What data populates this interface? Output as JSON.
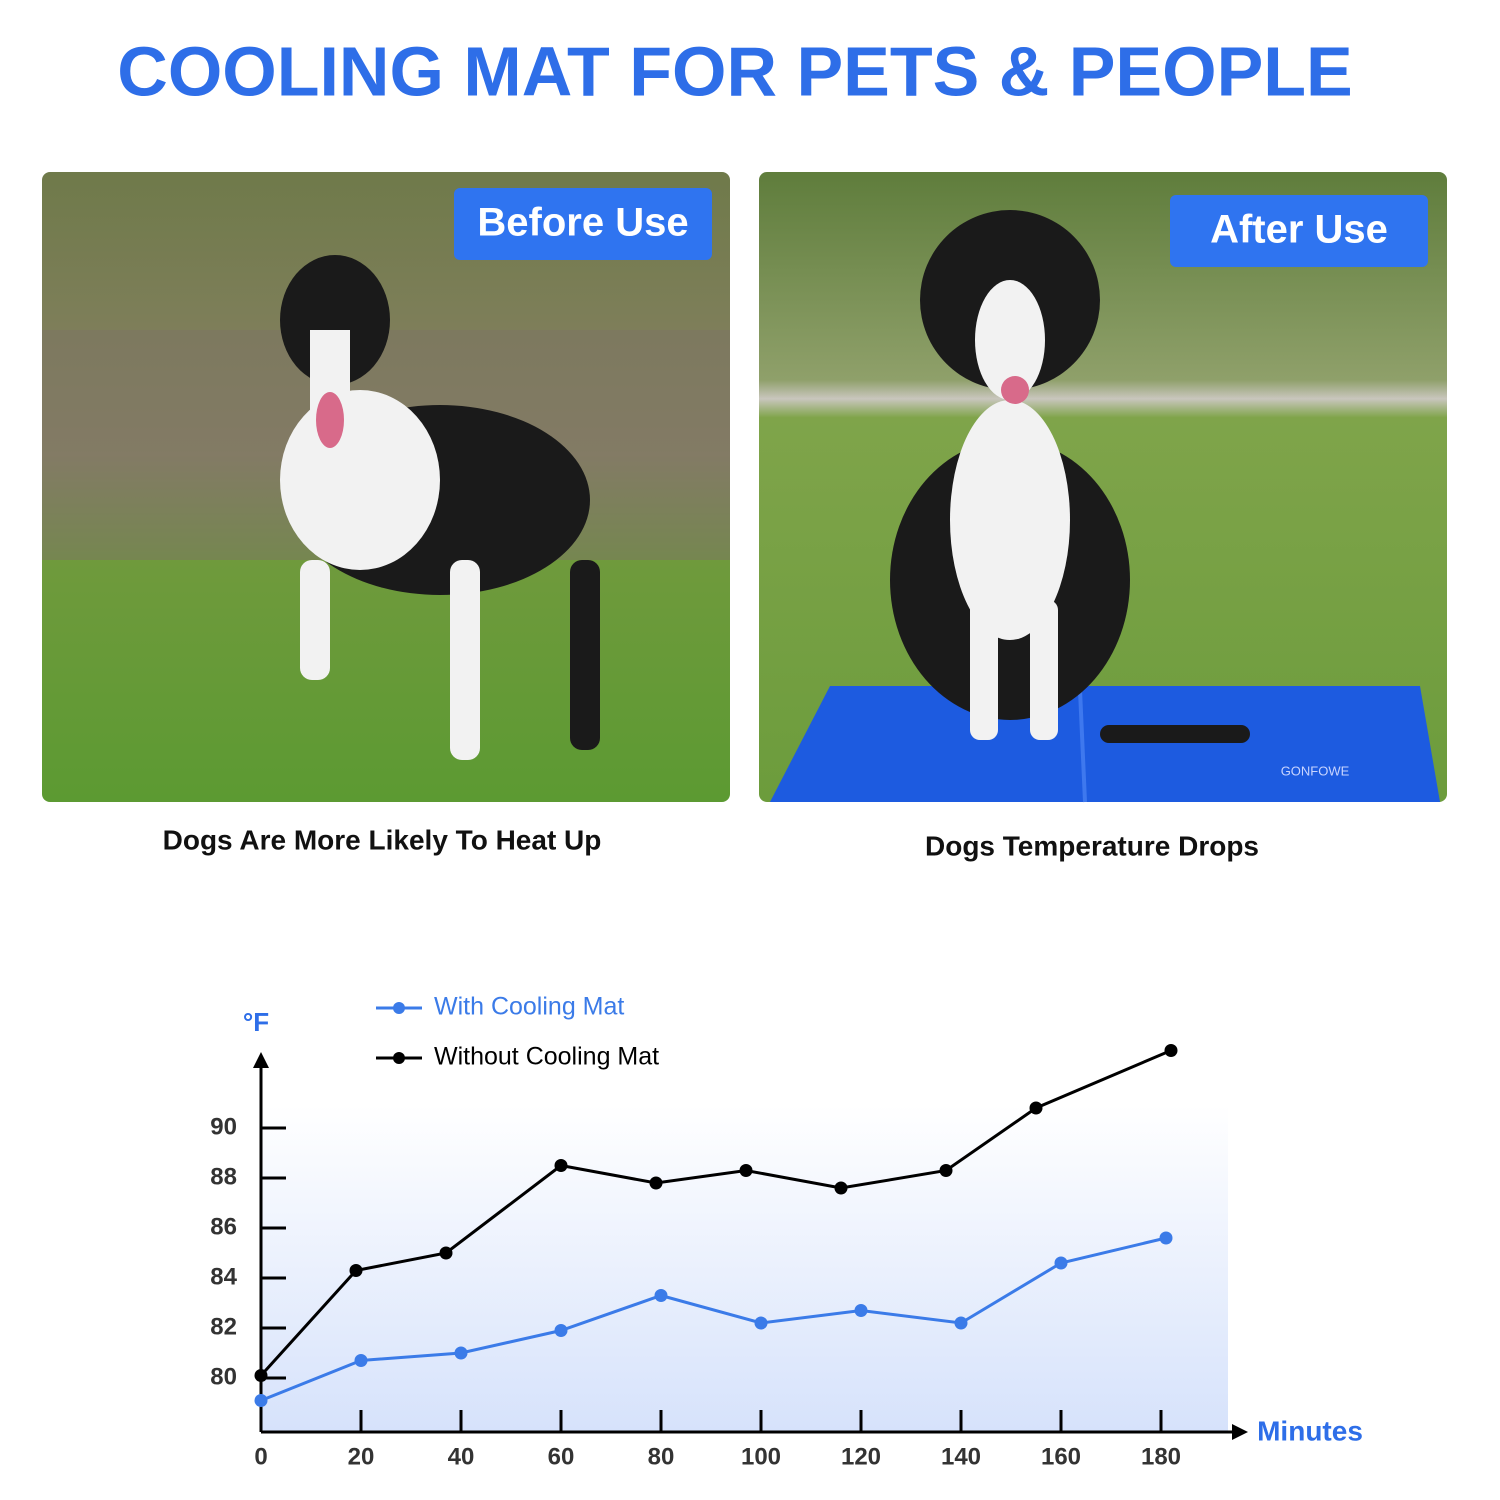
{
  "header": {
    "title": "COOLING MAT FOR PETS & PEOPLE"
  },
  "panels": [
    {
      "badge": "Before Use",
      "caption": "Dogs Are More Likely To Heat Up"
    },
    {
      "badge": "After Use",
      "caption": "Dogs Temperature Drops",
      "mat_brand": "GONFOWE"
    }
  ],
  "chart_data": {
    "type": "line",
    "y_label": "°F",
    "x_label": "Minutes",
    "xlim": [
      0,
      195
    ],
    "ylim": [
      77.84,
      93.52
    ],
    "xticks": [
      0,
      20,
      40,
      60,
      80,
      100,
      120,
      140,
      160,
      180
    ],
    "yticks": [
      80,
      82,
      84,
      86,
      88,
      90
    ],
    "legend_position": "upper left",
    "series": [
      {
        "name": "With Cooling Mat",
        "color": "#3b7be8",
        "x": [
          0,
          20,
          40,
          60,
          80,
          100,
          120,
          140,
          160,
          181
        ],
        "values": [
          79.1,
          80.7,
          81.0,
          81.9,
          83.3,
          82.2,
          82.7,
          82.2,
          84.6,
          85.6
        ]
      },
      {
        "name": "Without Cooling Mat",
        "color": "#000000",
        "x": [
          0,
          19,
          37,
          60,
          79,
          97,
          116,
          137,
          155,
          182
        ],
        "values": [
          80.1,
          84.3,
          85.0,
          88.5,
          87.8,
          88.3,
          87.6,
          88.3,
          90.8,
          93.1
        ]
      }
    ]
  }
}
